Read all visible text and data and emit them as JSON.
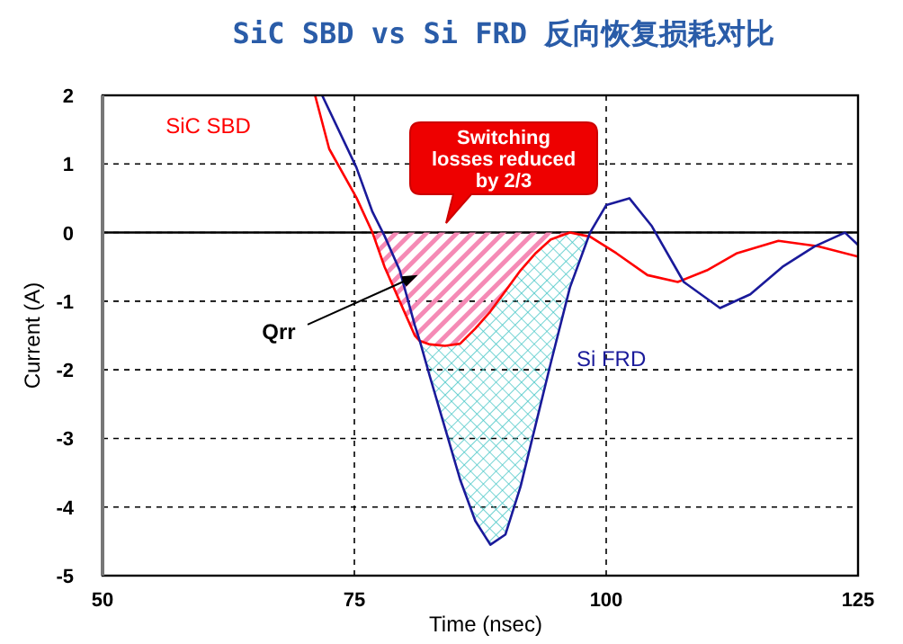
{
  "chart_data": {
    "type": "line",
    "title": "SiC SBD vs Si FRD 反向恢复损耗对比",
    "xlabel": "Time (nsec)",
    "ylabel": "Current (A)",
    "xlim": [
      50,
      125
    ],
    "xticks": [
      50,
      75,
      100,
      125
    ],
    "ylim": [
      -5,
      2
    ],
    "yticks": [
      -5,
      -4,
      -3,
      -2,
      -1,
      0,
      1,
      2
    ],
    "grid": true,
    "legend": false,
    "line_style": "solid",
    "marker": "none",
    "series": [
      {
        "name": "SiC SBD",
        "color": "#ff0000",
        "x": [
          71.1,
          72.5,
          75.2,
          76.8,
          78,
          79.5,
          81,
          81.5,
          82.5,
          84,
          85.5,
          87,
          88.5,
          90,
          91.5,
          93,
          94.5,
          96.4,
          98.4,
          101,
          104.1,
          107.1,
          110,
          113,
          117.1,
          121,
          125
        ],
        "values": [
          2,
          1.22,
          0.51,
          0,
          -0.5,
          -1.0,
          -1.5,
          -1.58,
          -1.63,
          -1.65,
          -1.62,
          -1.4,
          -1.15,
          -0.85,
          -0.55,
          -0.3,
          -0.1,
          0,
          -0.06,
          -0.3,
          -0.62,
          -0.72,
          -0.55,
          -0.3,
          -0.12,
          -0.2,
          -0.35
        ],
        "lower": [
          null,
          null,
          null,
          0,
          -0.5,
          -1.0,
          -1.5,
          -1.58,
          -1.63,
          -1.65,
          -1.62,
          -1.4,
          -1.15,
          -0.85,
          -0.55,
          -0.3,
          -0.1,
          0,
          null,
          null,
          null,
          null,
          null,
          null,
          null,
          null,
          null
        ],
        "upper": [
          null,
          null,
          null,
          0,
          0,
          0,
          0,
          0,
          0,
          0,
          0,
          0,
          0,
          0,
          0,
          0,
          0,
          0,
          null,
          null,
          null,
          null,
          null,
          null,
          null,
          null,
          null
        ]
      },
      {
        "name": "Si FRD",
        "color": "#1a1a9a",
        "x": [
          71.8,
          75.2,
          76.8,
          78,
          79.5,
          81,
          81.5,
          82.5,
          84,
          85.5,
          87,
          88.5,
          90,
          91.5,
          93,
          94.5,
          96.4,
          98.4,
          100,
          102.3,
          104.5,
          107.7,
          111.3,
          114.3,
          117.5,
          120.7,
          123.7,
          125
        ],
        "values": [
          2,
          0.95,
          0.3,
          -0.05,
          -0.55,
          -1.35,
          -1.58,
          -2.1,
          -2.85,
          -3.6,
          -4.2,
          -4.55,
          -4.4,
          -3.7,
          -2.8,
          -1.9,
          -0.8,
          0,
          0.4,
          0.5,
          0.1,
          -0.72,
          -1.1,
          -0.9,
          -0.5,
          -0.2,
          0,
          -0.18
        ],
        "lower": [
          null,
          null,
          null,
          null,
          null,
          null,
          -1.58,
          -2.1,
          -2.85,
          -3.6,
          -4.2,
          -4.55,
          -4.4,
          -3.7,
          -2.8,
          -1.9,
          -0.8,
          0,
          null,
          null,
          null,
          null,
          null,
          null,
          null,
          null,
          null,
          null
        ],
        "upper": [
          null,
          null,
          null,
          null,
          null,
          null,
          -1.58,
          -1.63,
          -1.65,
          -1.62,
          -1.4,
          -1.15,
          -0.85,
          -0.55,
          -0.3,
          -0.1,
          0,
          -0.06,
          null,
          null,
          null,
          null,
          null,
          null,
          null,
          null,
          null,
          null
        ]
      }
    ],
    "ref_lines": [
      {
        "axis": "y",
        "value": 0,
        "color": "#000000",
        "line_style": "solid"
      }
    ],
    "annotations": [
      "Switching losses reduced by 2/3",
      "Qrr"
    ]
  }
}
